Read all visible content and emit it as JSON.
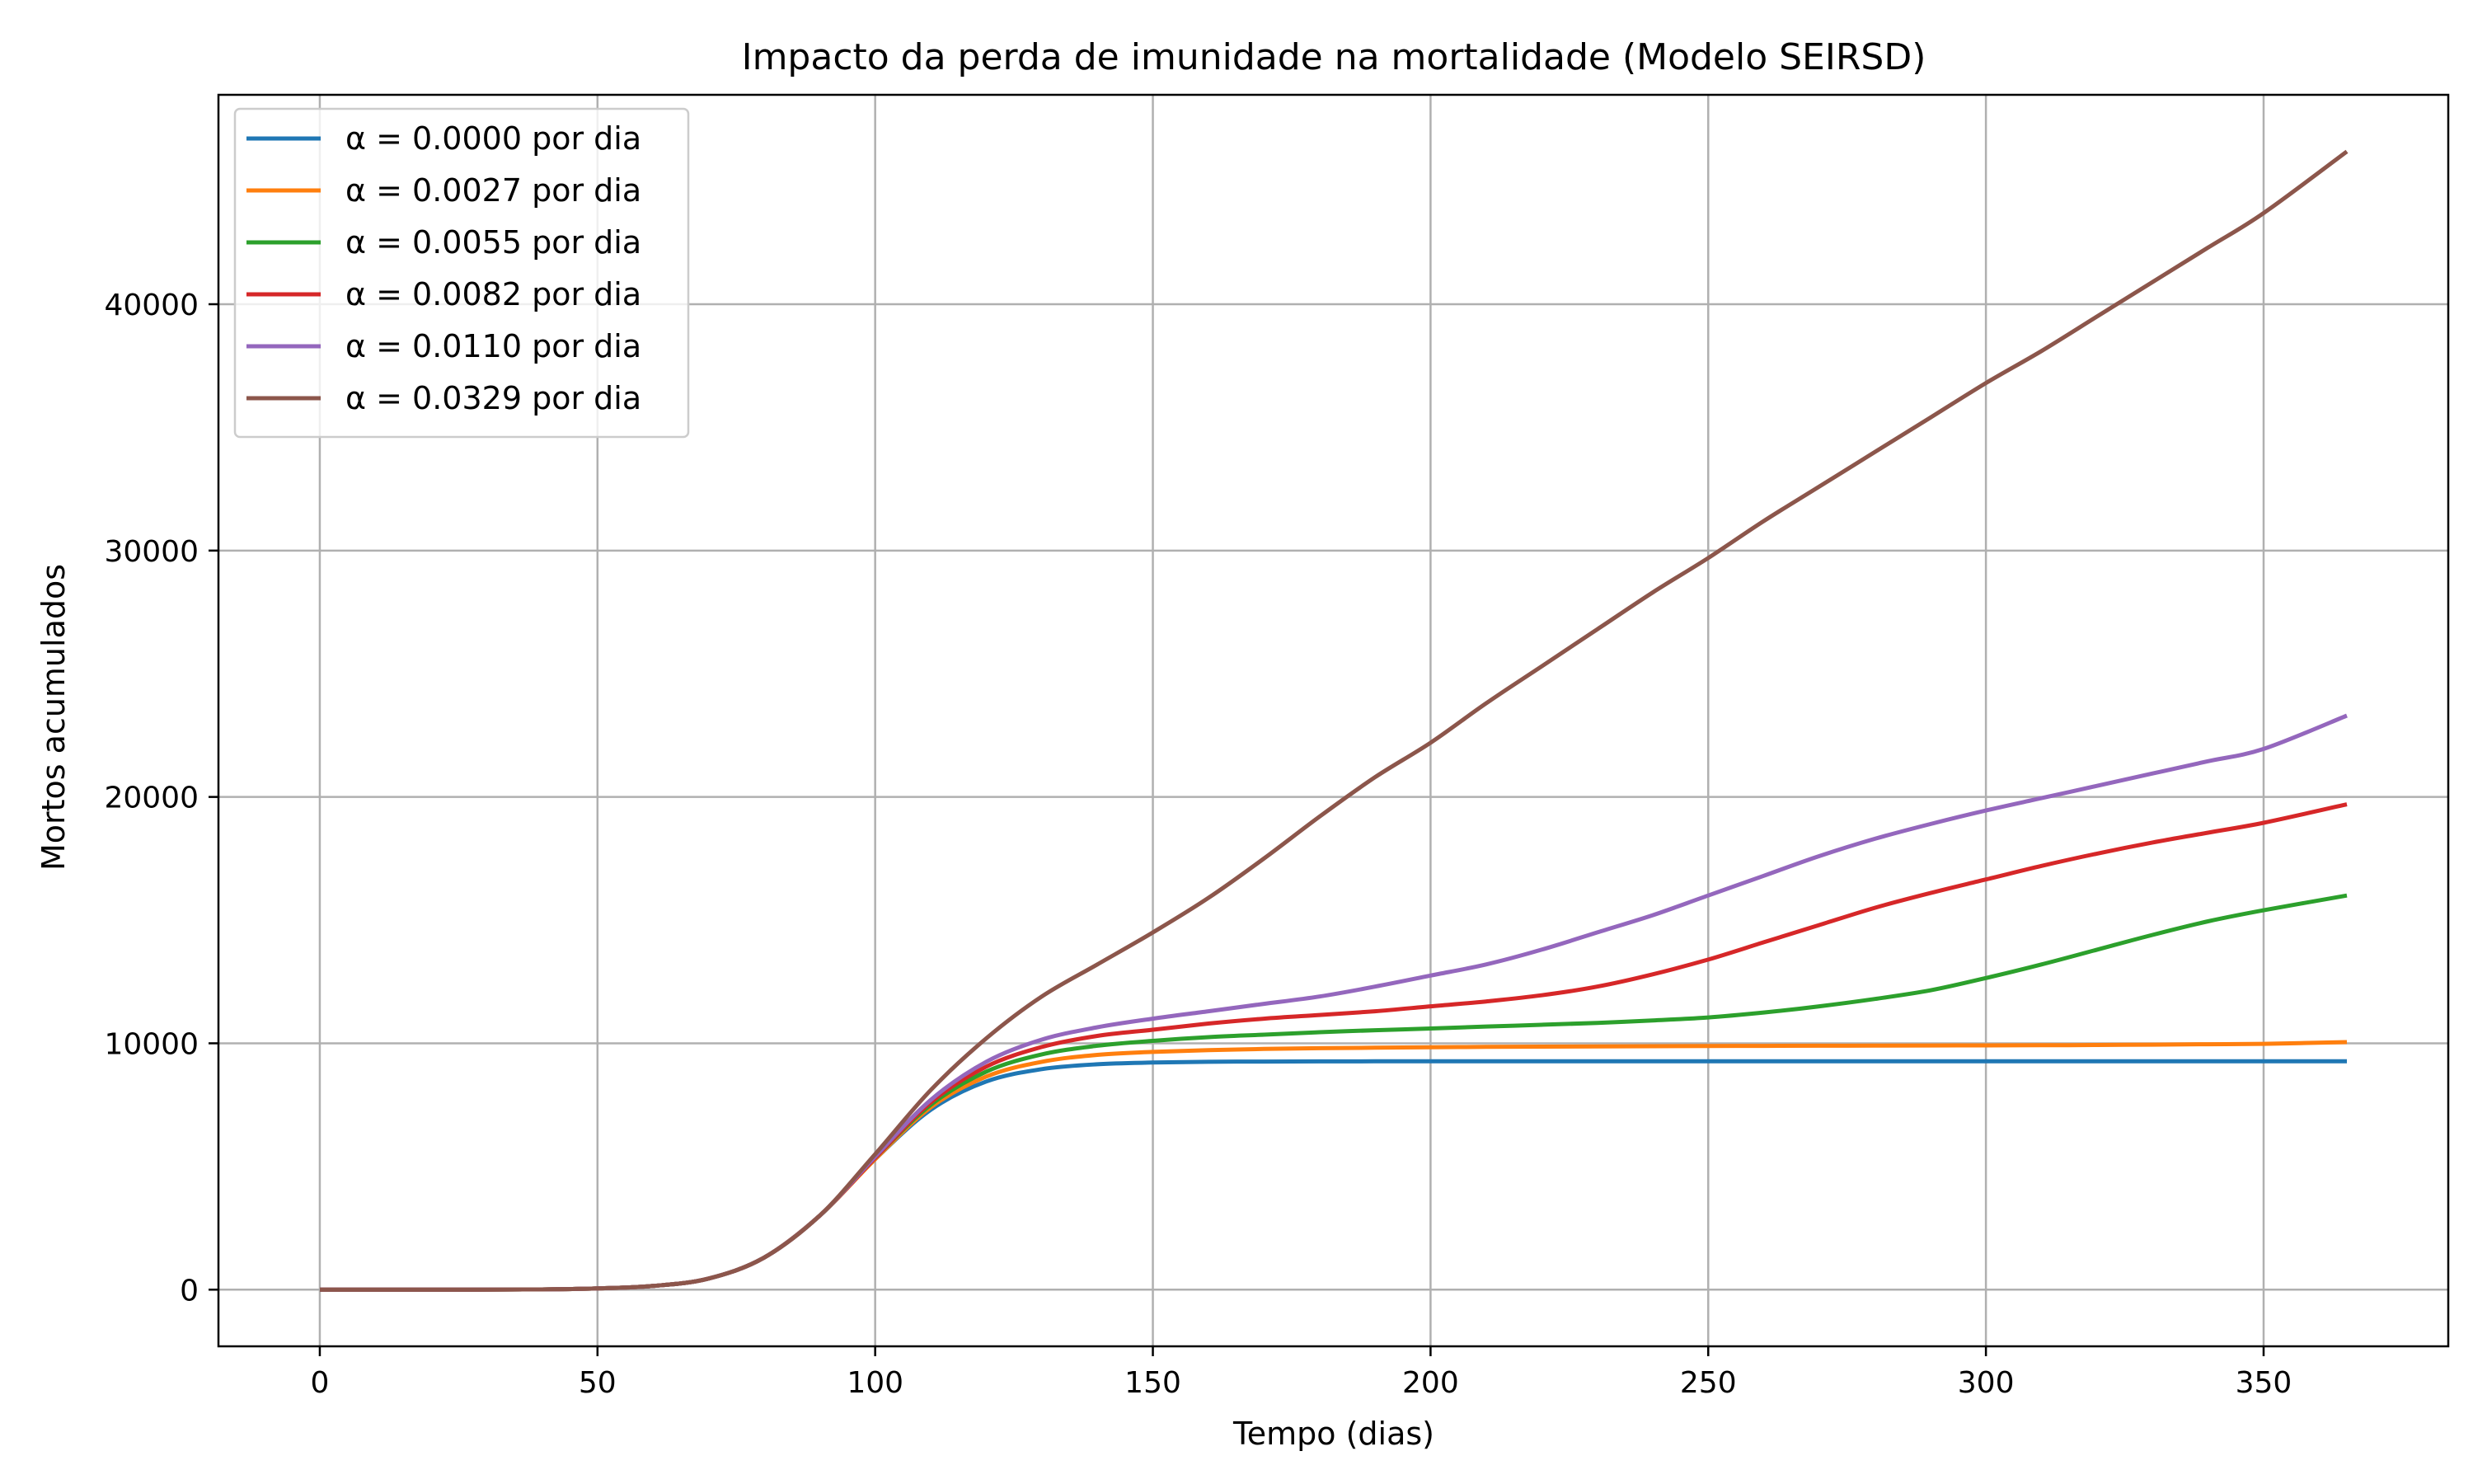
{
  "chart_data": {
    "type": "line",
    "title": "Impacto da perda de imunidade na mortalidade (Modelo SEIRSD)",
    "xlabel": "Tempo (dias)",
    "ylabel": "Mortos acumulados",
    "xlim": [
      -18.25,
      383.25
    ],
    "ylim": [
      -2300,
      48500
    ],
    "xticks": [
      0,
      50,
      100,
      150,
      200,
      250,
      300,
      350
    ],
    "yticks": [
      0,
      10000,
      20000,
      30000,
      40000
    ],
    "grid": true,
    "legend": "top-left",
    "x": [
      0,
      20,
      40,
      50,
      60,
      70,
      80,
      90,
      100,
      110,
      120,
      130,
      140,
      150,
      160,
      170,
      180,
      190,
      200,
      210,
      220,
      230,
      240,
      250,
      260,
      270,
      280,
      290,
      300,
      310,
      320,
      330,
      340,
      350,
      365
    ],
    "series": [
      {
        "name": "α = 0.0000 por dia",
        "color": "#1f77b4",
        "values": [
          0,
          0,
          10,
          50,
          150,
          450,
          1300,
          3000,
          5300,
          7300,
          8450,
          8950,
          9150,
          9220,
          9250,
          9260,
          9265,
          9270,
          9270,
          9270,
          9270,
          9270,
          9270,
          9270,
          9270,
          9270,
          9270,
          9270,
          9270,
          9270,
          9270,
          9270,
          9270,
          9270,
          9270
        ]
      },
      {
        "name": "α = 0.0027 por dia",
        "color": "#ff7f0e",
        "values": [
          0,
          0,
          10,
          50,
          150,
          450,
          1300,
          3000,
          5300,
          7400,
          8650,
          9250,
          9530,
          9650,
          9720,
          9770,
          9800,
          9820,
          9840,
          9855,
          9865,
          9875,
          9880,
          9890,
          9895,
          9900,
          9905,
          9910,
          9915,
          9920,
          9930,
          9945,
          9960,
          9980,
          10050
        ]
      },
      {
        "name": "α = 0.0055 por dia",
        "color": "#2ca02c",
        "values": [
          0,
          0,
          10,
          50,
          150,
          450,
          1300,
          3000,
          5350,
          7500,
          8850,
          9550,
          9900,
          10100,
          10250,
          10350,
          10450,
          10530,
          10600,
          10680,
          10750,
          10830,
          10930,
          11050,
          11250,
          11500,
          11800,
          12150,
          12650,
          13200,
          13800,
          14400,
          14950,
          15400,
          16000
        ]
      },
      {
        "name": "α = 0.0082 por dia",
        "color": "#d62728",
        "values": [
          0,
          0,
          10,
          50,
          150,
          450,
          1300,
          3000,
          5350,
          7600,
          9050,
          9850,
          10300,
          10550,
          10800,
          11000,
          11150,
          11300,
          11500,
          11700,
          11950,
          12300,
          12800,
          13400,
          14100,
          14800,
          15500,
          16100,
          16650,
          17200,
          17700,
          18150,
          18550,
          18950,
          19700
        ]
      },
      {
        "name": "α = 0.0110 por dia",
        "color": "#9467bd",
        "values": [
          0,
          0,
          10,
          50,
          150,
          450,
          1300,
          3000,
          5400,
          7700,
          9250,
          10150,
          10650,
          11000,
          11300,
          11600,
          11900,
          12300,
          12750,
          13200,
          13800,
          14500,
          15200,
          16000,
          16800,
          17600,
          18300,
          18900,
          19450,
          19950,
          20450,
          20950,
          21450,
          21950,
          23300
        ]
      },
      {
        "name": "α = 0.0329 por dia",
        "color": "#8c564b",
        "values": [
          0,
          0,
          10,
          50,
          150,
          450,
          1300,
          3000,
          5500,
          8100,
          10200,
          11900,
          13200,
          14500,
          15900,
          17500,
          19200,
          20800,
          22200,
          23800,
          25300,
          26800,
          28300,
          29700,
          31200,
          32600,
          34000,
          35400,
          36800,
          38100,
          39500,
          40900,
          42300,
          43700,
          46200
        ]
      }
    ]
  }
}
